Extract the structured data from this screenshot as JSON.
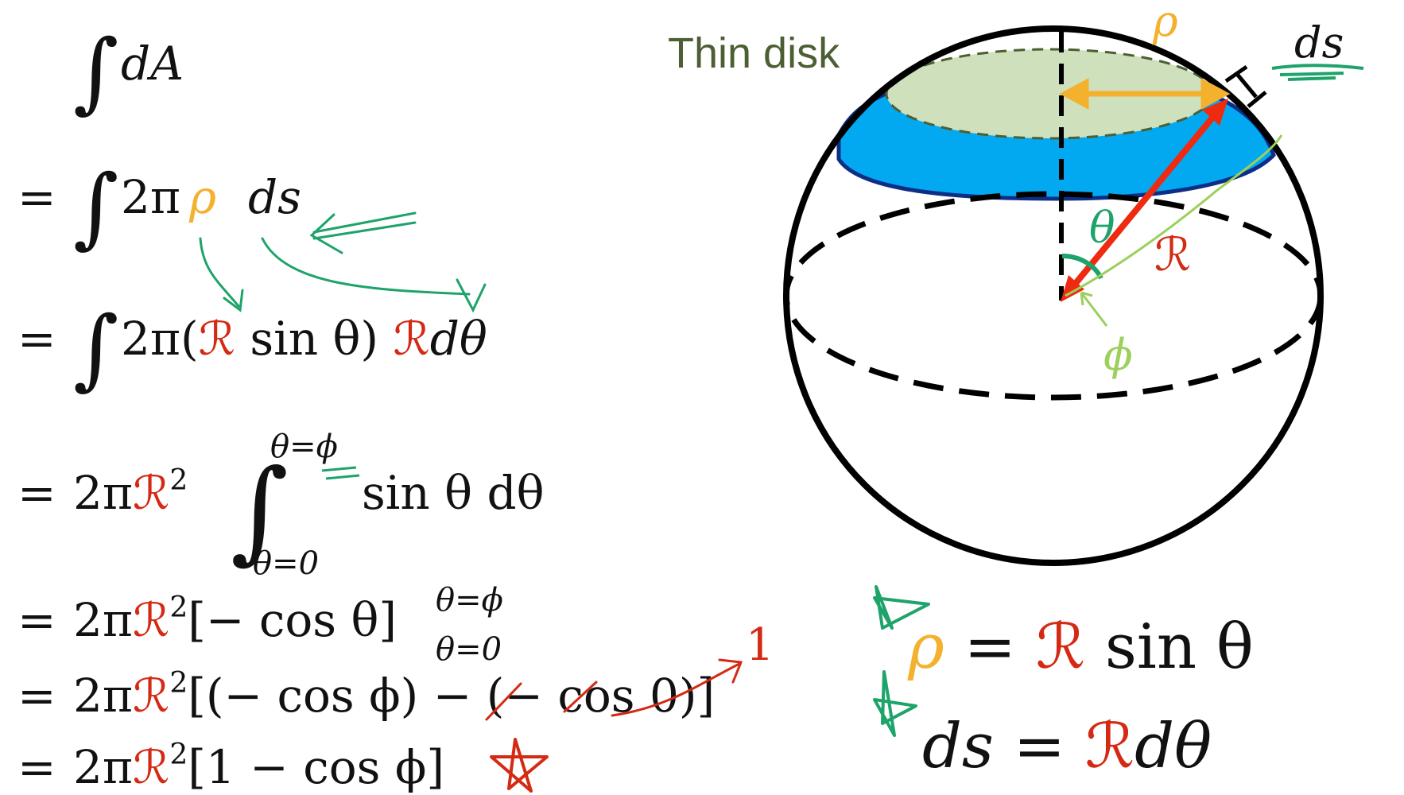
{
  "colors": {
    "ink": "#111111",
    "red": "#d42a14",
    "orange": "#f3b12e",
    "green": "#1ea36a",
    "lightgreen": "#9ccf5b",
    "olive": "#4b5f33",
    "blue": "#03a9f0",
    "darkblue": "#0d2e86",
    "disk": "#cfe0bc"
  },
  "icons": {
    "star": "hand-drawn-star-icon"
  },
  "left": {
    "line1": {
      "integral": "∫",
      "body": "dA"
    },
    "line2": {
      "eq": "=",
      "integral": "∫",
      "two_pi": "2π",
      "rho": "ρ",
      "ds": "ds"
    },
    "line3": {
      "eq": "=",
      "integral": "∫",
      "open": "2π(",
      "R1": "ℛ",
      "sin": " sin θ) ",
      "R2": "ℛ",
      "dtheta": "dθ"
    },
    "line4": {
      "eq": "=",
      "two_pi": "2π",
      "R": "ℛ",
      "sq": "2",
      "integral": "∫",
      "upper": "θ=ϕ",
      "lower": "θ=0",
      "body": "sin θ dθ"
    },
    "line5": {
      "eq": "=",
      "two_pi": "2π",
      "R": "ℛ",
      "sq": "2",
      "body": "[− cos θ]",
      "upper": "θ=ϕ",
      "lower": "θ=0"
    },
    "line6": {
      "eq": "=",
      "two_pi": "2π",
      "R": "ℛ",
      "sq": "2",
      "body": "[(− cos ϕ) − (− cos 0)]",
      "note": "1"
    },
    "line7": {
      "eq": "=",
      "two_pi": "2π",
      "R": "ℛ",
      "sq": "2",
      "body": "[1 − cos ϕ]"
    }
  },
  "figure": {
    "thin_disk": "Thin disk",
    "rho": "ρ",
    "ds": "ds",
    "theta": "θ",
    "R": "ℛ",
    "phi": "ϕ"
  },
  "right": {
    "eq1": {
      "lhs": "ρ",
      "eq": " = ",
      "R": "ℛ",
      "rhs": " sin θ"
    },
    "eq2": {
      "lhs": "ds = ",
      "R": "ℛ",
      "rhs": "dθ"
    }
  }
}
